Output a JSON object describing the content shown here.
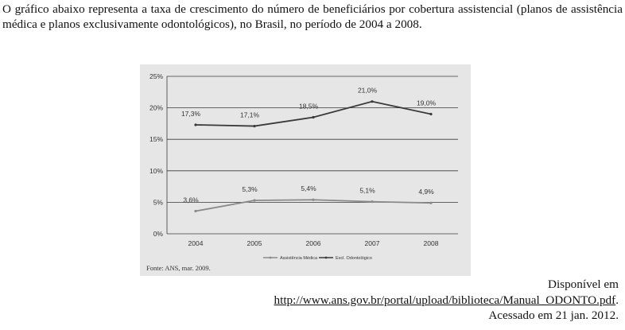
{
  "intro_text": "O gráfico abaixo representa a taxa de crescimento do número de beneficiários por cobertura assistencial (planos de assistência médica e planos exclusivamente odontológicos), no Brasil, no período de 2004 a 2008.",
  "source_note": "Fonte: ANS, mar. 2009.",
  "citation": {
    "available_at": "Disponível em",
    "url": "http://www.ans.gov.br/portal/upload/biblioteca/Manual_ODONTO.pdf",
    "url_suffix": ".",
    "accessed": "Acessado em 21 jan. 2012."
  },
  "colors": {
    "odonto": "#3a3a3a",
    "medica": "#8a8a8a",
    "grid": "#3a3a3a",
    "panel": "#e6e6e6"
  },
  "chart_data": {
    "type": "line",
    "title": "",
    "xlabel": "",
    "ylabel": "",
    "categories": [
      "2004",
      "2005",
      "2006",
      "2007",
      "2008"
    ],
    "ylim": [
      0,
      25
    ],
    "yticks": [
      0,
      5,
      10,
      15,
      20,
      25
    ],
    "ytick_labels": [
      "0%",
      "5%",
      "10%",
      "15%",
      "20%",
      "25%"
    ],
    "grid": true,
    "legend_position": "bottom",
    "series": [
      {
        "key": "medica",
        "name": "Assistência Médica",
        "values": [
          3.6,
          5.3,
          5.4,
          5.1,
          4.9
        ],
        "labels": [
          "3,6%",
          "5,3%",
          "5,4%",
          "5,1%",
          "4,9%"
        ]
      },
      {
        "key": "odonto",
        "name": "Excl. Odontológico",
        "values": [
          17.3,
          17.1,
          18.5,
          21.0,
          19.0
        ],
        "labels": [
          "17,3%",
          "17,1%",
          "18,5%",
          "21,0%",
          "19,0%"
        ]
      }
    ]
  }
}
